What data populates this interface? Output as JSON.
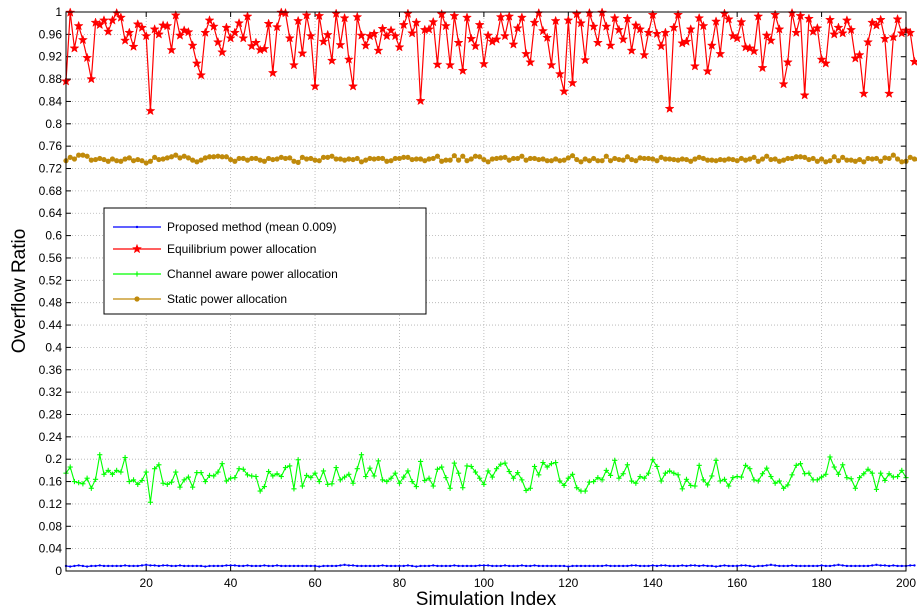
{
  "chart_data": {
    "type": "line",
    "xlabel": "Simulation Index",
    "ylabel": "Overflow Ratio",
    "xlim": [
      1,
      200
    ],
    "ylim": [
      0,
      1
    ],
    "grid": true,
    "legend_position": "upper-left",
    "x_ticks": [
      "20",
      "40",
      "60",
      "80",
      "100",
      "120",
      "140",
      "160",
      "180",
      "200"
    ],
    "y_ticks": [
      "0",
      "0.04",
      "0.08",
      "0.12",
      "0.16",
      "0.2",
      "0.24",
      "0.28",
      "0.32",
      "0.36",
      "0.4",
      "0.44",
      "0.48",
      "0.52",
      "0.56",
      "0.6",
      "0.64",
      "0.68",
      "0.72",
      "0.76",
      "0.8",
      "0.84",
      "0.88",
      "0.92",
      "0.96",
      "1"
    ],
    "series": [
      {
        "name": "Proposed method (mean 0.009)",
        "color": "#0000ff",
        "marker": "dot",
        "values": [
          0.009,
          0.008,
          0.009,
          0.01,
          0.009,
          0.008,
          0.009,
          0.009,
          0.01,
          0.009,
          0.009,
          0.009,
          0.009,
          0.009,
          0.01,
          0.009,
          0.009,
          0.009,
          0.01,
          0.011,
          0.01,
          0.01,
          0.009,
          0.01,
          0.01,
          0.009,
          0.009,
          0.01,
          0.009,
          0.009,
          0.009,
          0.009,
          0.009,
          0.008,
          0.009,
          0.009,
          0.009,
          0.009,
          0.01,
          0.01,
          0.01,
          0.009,
          0.009,
          0.01,
          0.009,
          0.009,
          0.009,
          0.01,
          0.009,
          0.009,
          0.01,
          0.009,
          0.009,
          0.009,
          0.009,
          0.009,
          0.009,
          0.009,
          0.009,
          0.009,
          0.008,
          0.009,
          0.009,
          0.009,
          0.009,
          0.01,
          0.011,
          0.01,
          0.01,
          0.009,
          0.009,
          0.009,
          0.009,
          0.009,
          0.009,
          0.01,
          0.009,
          0.009,
          0.009,
          0.009,
          0.009,
          0.01,
          0.009,
          0.008,
          0.009,
          0.009,
          0.009,
          0.01,
          0.009,
          0.009,
          0.009,
          0.009,
          0.01,
          0.009,
          0.009,
          0.009,
          0.009,
          0.009,
          0.01,
          0.01,
          0.01,
          0.009,
          0.009,
          0.009,
          0.01,
          0.009,
          0.009,
          0.009,
          0.01,
          0.009,
          0.009,
          0.01,
          0.009,
          0.009,
          0.009,
          0.009,
          0.009,
          0.009,
          0.009,
          0.008,
          0.009,
          0.009,
          0.009,
          0.009,
          0.009,
          0.009,
          0.009,
          0.009,
          0.01,
          0.009,
          0.009,
          0.009,
          0.009,
          0.009,
          0.01,
          0.01,
          0.009,
          0.009,
          0.009,
          0.01,
          0.009,
          0.01,
          0.01,
          0.009,
          0.009,
          0.009,
          0.01,
          0.009,
          0.01,
          0.01,
          0.009,
          0.01,
          0.009,
          0.009,
          0.008,
          0.009,
          0.01,
          0.009,
          0.009,
          0.009,
          0.01,
          0.01,
          0.009,
          0.008,
          0.009,
          0.009,
          0.01,
          0.011,
          0.01,
          0.009,
          0.009,
          0.009,
          0.01,
          0.009,
          0.009,
          0.009,
          0.009,
          0.009,
          0.009,
          0.01,
          0.009,
          0.009,
          0.01,
          0.011,
          0.01,
          0.009,
          0.009,
          0.009,
          0.009,
          0.009,
          0.009,
          0.01,
          0.011,
          0.01,
          0.01,
          0.009,
          0.01,
          0.009,
          0.009,
          0.009,
          0.01,
          0.01
        ]
      },
      {
        "name": "Equilibrium power allocation",
        "color": "#ff0000",
        "marker": "star",
        "values": [
          0.876,
          0.999,
          0.935,
          0.975,
          0.95,
          0.918,
          0.88,
          0.981,
          0.977,
          0.985,
          0.965,
          0.985,
          0.998,
          0.99,
          0.949,
          0.963,
          0.938,
          0.978,
          0.972,
          0.957,
          0.823,
          0.969,
          0.96,
          0.976,
          0.975,
          0.932,
          0.994,
          0.958,
          0.967,
          0.964,
          0.94,
          0.908,
          0.887,
          0.963,
          0.985,
          0.974,
          0.946,
          0.928,
          0.972,
          0.953,
          0.963,
          0.98,
          0.953,
          0.992,
          0.939,
          0.945,
          0.932,
          0.934,
          0.979,
          0.891,
          0.973,
          0.999,
          0.998,
          0.953,
          0.905,
          0.984,
          0.926,
          0.994,
          0.957,
          0.867,
          0.993,
          0.947,
          0.959,
          0.913,
          0.997,
          0.941,
          0.989,
          0.915,
          0.867,
          0.991,
          0.958,
          0.94,
          0.957,
          0.961,
          0.931,
          0.97,
          0.957,
          0.967,
          0.957,
          0.937,
          0.977,
          0.997,
          0.962,
          0.981,
          0.841,
          0.968,
          0.969,
          0.982,
          0.906,
          0.996,
          0.975,
          0.905,
          0.993,
          0.945,
          0.895,
          0.99,
          0.952,
          0.939,
          0.977,
          0.907,
          0.958,
          0.947,
          0.951,
          0.991,
          0.957,
          0.992,
          0.942,
          0.971,
          0.99,
          0.925,
          0.91,
          0.981,
          0.998,
          0.966,
          0.954,
          0.905,
          0.984,
          0.889,
          0.858,
          0.985,
          0.873,
          0.996,
          0.98,
          0.914,
          0.998,
          0.974,
          0.945,
          0.999,
          0.974,
          0.94,
          0.989,
          0.968,
          0.951,
          0.988,
          0.931,
          0.976,
          0.969,
          0.923,
          0.963,
          0.995,
          0.961,
          0.939,
          0.963,
          0.827,
          0.972,
          0.995,
          0.944,
          0.947,
          0.969,
          0.903,
          0.989,
          0.975,
          0.894,
          0.94,
          0.983,
          0.925,
          0.997,
          0.987,
          0.957,
          0.953,
          0.982,
          0.937,
          0.935,
          0.93,
          0.992,
          0.9,
          0.958,
          0.949,
          0.995,
          0.969,
          0.871,
          0.91,
          0.998,
          0.963,
          0.993,
          0.851,
          0.988,
          0.965,
          0.971,
          0.915,
          0.908,
          0.986,
          0.96,
          0.972,
          0.962,
          0.985,
          0.968,
          0.917,
          0.923,
          0.854,
          0.946,
          0.981,
          0.976,
          0.986,
          0.952,
          0.854,
          0.955,
          0.987,
          0.962,
          0.967,
          0.963,
          0.911
        ]
      },
      {
        "name": "Channel aware power allocation",
        "color": "#00ff00",
        "marker": "plus",
        "values": [
          0.175,
          0.186,
          0.16,
          0.158,
          0.156,
          0.166,
          0.148,
          0.164,
          0.208,
          0.173,
          0.18,
          0.173,
          0.18,
          0.177,
          0.203,
          0.16,
          0.163,
          0.155,
          0.162,
          0.177,
          0.123,
          0.183,
          0.19,
          0.157,
          0.155,
          0.159,
          0.177,
          0.15,
          0.163,
          0.168,
          0.15,
          0.176,
          0.176,
          0.16,
          0.171,
          0.17,
          0.177,
          0.192,
          0.161,
          0.166,
          0.167,
          0.183,
          0.182,
          0.172,
          0.17,
          0.169,
          0.143,
          0.151,
          0.178,
          0.17,
          0.174,
          0.169,
          0.185,
          0.188,
          0.147,
          0.199,
          0.152,
          0.171,
          0.167,
          0.175,
          0.16,
          0.179,
          0.155,
          0.156,
          0.185,
          0.163,
          0.168,
          0.173,
          0.157,
          0.183,
          0.208,
          0.169,
          0.184,
          0.17,
          0.197,
          0.163,
          0.16,
          0.166,
          0.175,
          0.157,
          0.168,
          0.179,
          0.16,
          0.151,
          0.196,
          0.162,
          0.166,
          0.152,
          0.182,
          0.186,
          0.167,
          0.148,
          0.193,
          0.175,
          0.149,
          0.188,
          0.187,
          0.177,
          0.166,
          0.155,
          0.179,
          0.168,
          0.183,
          0.191,
          0.193,
          0.178,
          0.166,
          0.176,
          0.163,
          0.144,
          0.148,
          0.187,
          0.172,
          0.194,
          0.186,
          0.192,
          0.194,
          0.161,
          0.153,
          0.166,
          0.173,
          0.149,
          0.143,
          0.143,
          0.159,
          0.16,
          0.167,
          0.163,
          0.18,
          0.171,
          0.198,
          0.166,
          0.174,
          0.19,
          0.161,
          0.157,
          0.169,
          0.166,
          0.175,
          0.199,
          0.187,
          0.161,
          0.175,
          0.179,
          0.175,
          0.172,
          0.147,
          0.164,
          0.153,
          0.152,
          0.189,
          0.163,
          0.154,
          0.17,
          0.198,
          0.161,
          0.164,
          0.152,
          0.167,
          0.169,
          0.168,
          0.189,
          0.183,
          0.163,
          0.161,
          0.174,
          0.184,
          0.169,
          0.157,
          0.161,
          0.148,
          0.154,
          0.172,
          0.189,
          0.192,
          0.174,
          0.175,
          0.163,
          0.163,
          0.168,
          0.173,
          0.204,
          0.186,
          0.173,
          0.19,
          0.167,
          0.165,
          0.148,
          0.167,
          0.174,
          0.182,
          0.175,
          0.146,
          0.175,
          0.162,
          0.174,
          0.168,
          0.169,
          0.18,
          0.167
        ]
      },
      {
        "name": "Static power allocation",
        "color": "#c08a0b",
        "marker": "dot",
        "values": [
          0.734,
          0.74,
          0.737,
          0.744,
          0.744,
          0.742,
          0.735,
          0.736,
          0.738,
          0.736,
          0.733,
          0.737,
          0.734,
          0.733,
          0.737,
          0.739,
          0.734,
          0.736,
          0.734,
          0.73,
          0.733,
          0.74,
          0.736,
          0.737,
          0.739,
          0.741,
          0.744,
          0.739,
          0.742,
          0.739,
          0.735,
          0.732,
          0.735,
          0.739,
          0.741,
          0.741,
          0.742,
          0.741,
          0.741,
          0.736,
          0.733,
          0.738,
          0.738,
          0.735,
          0.738,
          0.738,
          0.735,
          0.733,
          0.738,
          0.736,
          0.737,
          0.74,
          0.738,
          0.739,
          0.733,
          0.731,
          0.74,
          0.737,
          0.738,
          0.735,
          0.734,
          0.74,
          0.74,
          0.742,
          0.737,
          0.737,
          0.735,
          0.737,
          0.736,
          0.738,
          0.732,
          0.735,
          0.738,
          0.737,
          0.738,
          0.738,
          0.733,
          0.734,
          0.738,
          0.738,
          0.74,
          0.74,
          0.736,
          0.737,
          0.737,
          0.734,
          0.737,
          0.738,
          0.742,
          0.733,
          0.735,
          0.735,
          0.743,
          0.735,
          0.742,
          0.734,
          0.737,
          0.742,
          0.741,
          0.736,
          0.732,
          0.737,
          0.738,
          0.739,
          0.74,
          0.735,
          0.738,
          0.738,
          0.742,
          0.735,
          0.738,
          0.738,
          0.736,
          0.737,
          0.734,
          0.734,
          0.737,
          0.734,
          0.735,
          0.739,
          0.743,
          0.736,
          0.732,
          0.737,
          0.734,
          0.738,
          0.734,
          0.734,
          0.742,
          0.734,
          0.738,
          0.736,
          0.735,
          0.741,
          0.736,
          0.734,
          0.739,
          0.738,
          0.738,
          0.737,
          0.734,
          0.74,
          0.737,
          0.737,
          0.736,
          0.735,
          0.737,
          0.736,
          0.733,
          0.737,
          0.74,
          0.738,
          0.735,
          0.735,
          0.734,
          0.736,
          0.735,
          0.737,
          0.736,
          0.734,
          0.738,
          0.735,
          0.737,
          0.74,
          0.733,
          0.737,
          0.742,
          0.736,
          0.737,
          0.733,
          0.735,
          0.738,
          0.738,
          0.741,
          0.741,
          0.74,
          0.736,
          0.738,
          0.733,
          0.737,
          0.732,
          0.734,
          0.741,
          0.734,
          0.74,
          0.735,
          0.735,
          0.733,
          0.736,
          0.732,
          0.738,
          0.737,
          0.738,
          0.733,
          0.739,
          0.738,
          0.744,
          0.737,
          0.732,
          0.733,
          0.74,
          0.737,
          0.736,
          0.736
        ]
      }
    ]
  }
}
